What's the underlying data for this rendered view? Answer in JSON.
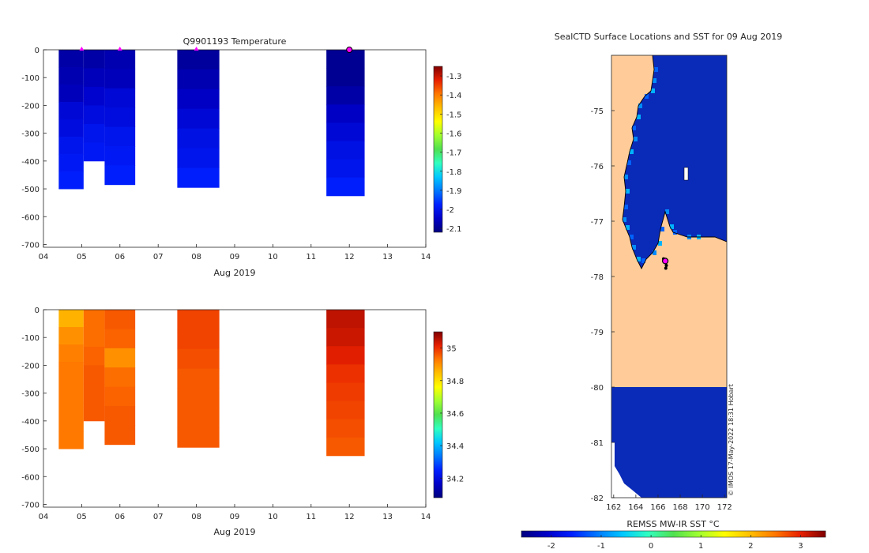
{
  "colors": {
    "scale": [
      "#00007f",
      "#0000c8",
      "#0020ff",
      "#0078ff",
      "#00c8ff",
      "#30ffc0",
      "#50e050",
      "#a0ff30",
      "#ffff00",
      "#ffc000",
      "#ff7800",
      "#e82000",
      "#7f0000"
    ],
    "land": "#ffcc99",
    "coast": "#000000",
    "marker": "#ff00ff",
    "axis": "#262626"
  },
  "chart_data": [
    {
      "id": "temperature",
      "type": "heatmap",
      "title": "Q9901193  Temperature",
      "xlabel": "Aug 2019",
      "ylabel": "",
      "xlim": [
        4,
        14
      ],
      "ylim": [
        -710,
        0
      ],
      "xticks": [
        "04",
        "05",
        "06",
        "07",
        "08",
        "09",
        "10",
        "11",
        "12",
        "13",
        "14"
      ],
      "yticks": [
        "0",
        "-100",
        "-200",
        "-300",
        "-400",
        "-500",
        "-600",
        "-700"
      ],
      "clim": [
        -2.12,
        -1.25
      ],
      "colorbar_ticks": [
        "-1.3",
        "-1.4",
        "-1.5",
        "-1.6",
        "-1.7",
        "-1.8",
        "-1.9",
        "-2",
        "-2.1"
      ],
      "surface_markers_day": [
        5.0,
        6.0,
        8.0,
        12.0
      ],
      "profiles": [
        {
          "x0": 4.4,
          "x1": 5.05,
          "bottom": -500,
          "vals": [
            -2.08,
            -2.07,
            -2.06,
            -2.03,
            -2.02,
            -2.0,
            -1.99,
            -1.98
          ]
        },
        {
          "x0": 5.05,
          "x1": 5.6,
          "bottom": -400,
          "vals": [
            -2.08,
            -2.06,
            -2.04,
            -2.02,
            -2.0,
            -1.99
          ]
        },
        {
          "x0": 5.6,
          "x1": 6.4,
          "bottom": -485,
          "vals": [
            -2.07,
            -2.06,
            -2.03,
            -2.02,
            -2.0,
            -1.99,
            -1.98
          ]
        },
        {
          "x0": 7.5,
          "x1": 8.6,
          "bottom": -495,
          "vals": [
            -2.09,
            -2.07,
            -2.05,
            -2.03,
            -2.01,
            -2.0,
            -1.98
          ]
        },
        {
          "x0": 11.4,
          "x1": 12.4,
          "bottom": -525,
          "vals": [
            -2.1,
            -2.1,
            -2.08,
            -2.05,
            -2.03,
            -2.01,
            -2.0,
            -1.98
          ]
        }
      ]
    },
    {
      "id": "salinity",
      "type": "heatmap",
      "title": "",
      "xlabel": "Aug 2019",
      "ylabel": "",
      "xlim": [
        4,
        14
      ],
      "ylim": [
        -710,
        0
      ],
      "xticks": [
        "04",
        "05",
        "06",
        "07",
        "08",
        "09",
        "10",
        "11",
        "12",
        "13",
        "14"
      ],
      "yticks": [
        "0",
        "-100",
        "-200",
        "-300",
        "-400",
        "-500",
        "-600",
        "-700"
      ],
      "clim": [
        34.08,
        35.1
      ],
      "colorbar_ticks": [
        "35",
        "34.8",
        "34.6",
        "34.4",
        "34.2"
      ],
      "profiles": [
        {
          "x0": 4.4,
          "x1": 5.05,
          "bottom": -500,
          "vals": [
            34.86,
            34.9,
            34.92,
            34.93,
            34.93,
            34.93,
            34.93,
            34.93
          ]
        },
        {
          "x0": 5.05,
          "x1": 5.6,
          "bottom": -400,
          "vals": [
            34.94,
            34.94,
            34.95,
            34.96,
            34.96,
            34.96
          ]
        },
        {
          "x0": 5.6,
          "x1": 6.4,
          "bottom": -485,
          "vals": [
            34.96,
            34.95,
            34.9,
            34.94,
            34.95,
            34.96,
            34.96
          ]
        },
        {
          "x0": 7.5,
          "x1": 8.6,
          "bottom": -495,
          "vals": [
            34.98,
            34.98,
            34.97,
            34.96,
            34.96,
            34.96,
            34.96
          ]
        },
        {
          "x0": 11.4,
          "x1": 12.4,
          "bottom": -525,
          "vals": [
            35.05,
            35.04,
            35.02,
            35.0,
            34.99,
            34.98,
            34.97,
            34.96
          ]
        }
      ]
    },
    {
      "id": "sst_map",
      "type": "heatmap",
      "title": "SealCTD Surface Locations and SST for 09 Aug 2019",
      "xlabel": "",
      "ylabel": "",
      "colorbar_label": "REMSS MW-IR SST °C",
      "credit": "© IMOS 17-May-2022 18:31 Hobart",
      "xlim": [
        161.8,
        172.2
      ],
      "ylim": [
        -82,
        -74
      ],
      "xticks": [
        "162",
        "164",
        "166",
        "168",
        "170",
        "172"
      ],
      "yticks": [
        "-75",
        "-76",
        "-77",
        "-78",
        "-79",
        "-80",
        "-81",
        "-82"
      ],
      "clim": [
        -2.6,
        3.5
      ],
      "colorbar_ticks": [
        "-2",
        "-1",
        "0",
        "1",
        "2",
        "3"
      ],
      "ocean_sst": -1.9,
      "coast_sst": -1.2,
      "ice_shelf_edge_lat": -80,
      "track": [
        [
          166.5,
          -77.68
        ],
        [
          166.6,
          -77.7
        ],
        [
          166.7,
          -77.75
        ],
        [
          166.75,
          -77.8
        ],
        [
          166.7,
          -77.85
        ],
        [
          166.65,
          -77.72
        ]
      ]
    }
  ]
}
